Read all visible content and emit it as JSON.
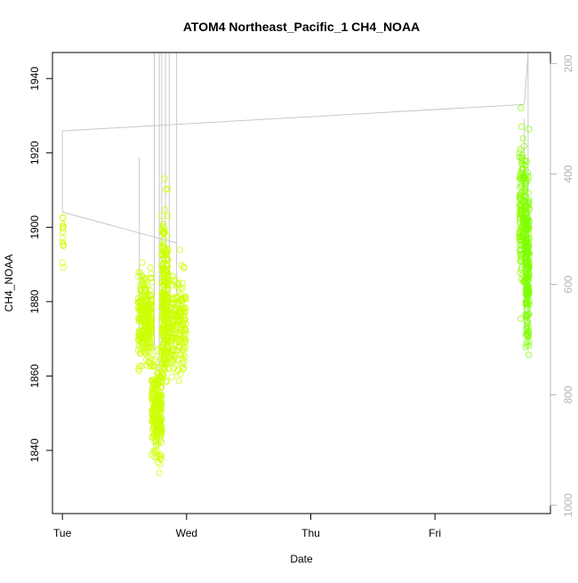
{
  "chart_data": {
    "type": "scatter",
    "title": "ATOM4 Northeast_Pacific_1 CH4_NOAA",
    "xlabel": "Date",
    "ylabel": "CH4_NOAA",
    "x_ticks": [
      "Tue",
      "Wed",
      "Thu",
      "Fri"
    ],
    "x_range_days": [
      -0.08,
      3.93
    ],
    "ylim": [
      1823,
      1947
    ],
    "y_ticks": [
      1840,
      1860,
      1880,
      1900,
      1920,
      1940
    ],
    "right_axis": {
      "reversed": true,
      "ylim": [
        1015,
        180
      ],
      "ticks": [
        200,
        400,
        600,
        800,
        1000
      ],
      "color": "#b4b4b4",
      "note": "secondary axis (pressure-like) drawn as grey flight-altitude trace"
    },
    "grid": false,
    "colors": {
      "early_points": "#ccff00",
      "late_points": "#7fff00",
      "trace": "#c8c8c8"
    },
    "series": [
      {
        "marker": "open-circle",
        "clusters": [
          {
            "day_start": 0.0,
            "day_end": 0.01,
            "y_min": 1878,
            "y_max": 1915,
            "count": 14,
            "color": "#ccff00"
          },
          {
            "day_start": 0.61,
            "day_end": 0.72,
            "y_min": 1851,
            "y_max": 1900,
            "count": 260,
            "color": "#ccff00"
          },
          {
            "day_start": 0.72,
            "day_end": 0.8,
            "y_min": 1826,
            "y_max": 1875,
            "count": 260,
            "color": "#ccff00"
          },
          {
            "day_start": 0.8,
            "day_end": 0.85,
            "y_min": 1838,
            "y_max": 1921,
            "count": 260,
            "color": "#ccff00"
          },
          {
            "day_start": 0.85,
            "day_end": 0.995,
            "y_min": 1848,
            "y_max": 1900,
            "count": 200,
            "color": "#ccff00"
          },
          {
            "day_start": 3.68,
            "day_end": 3.73,
            "y_min": 1866,
            "y_max": 1942,
            "count": 160,
            "color": "#8aff00"
          },
          {
            "day_start": 3.73,
            "day_end": 3.76,
            "y_min": 1847,
            "y_max": 1933,
            "count": 200,
            "color": "#7fff00"
          }
        ]
      }
    ],
    "trace": {
      "segments": [
        {
          "x": [
            0.0,
            0.0,
            0.0
          ],
          "y_right": [
            322,
            469,
            322
          ]
        },
        {
          "x": [
            0.0,
            0.92
          ],
          "y_right": [
            469,
            525
          ]
        },
        {
          "x": [
            0.0,
            3.72
          ],
          "y_right": [
            322,
            274
          ]
        },
        {
          "x": [
            3.72,
            3.75
          ],
          "y_right": [
            274,
            180
          ]
        }
      ],
      "verticals": [
        {
          "x": 0.62,
          "y_right": [
            370,
            700
          ]
        },
        {
          "x": 0.74,
          "y_right": [
            180,
            720
          ]
        },
        {
          "x": 0.78,
          "y_right": [
            180,
            760
          ]
        },
        {
          "x": 0.8,
          "y_right": [
            180,
            740
          ]
        },
        {
          "x": 0.83,
          "y_right": [
            180,
            720
          ]
        },
        {
          "x": 0.86,
          "y_right": [
            180,
            730
          ]
        },
        {
          "x": 0.92,
          "y_right": [
            180,
            620
          ]
        },
        {
          "x": 3.72,
          "y_right": [
            300,
            690
          ]
        },
        {
          "x": 3.75,
          "y_right": [
            180,
            690
          ]
        }
      ]
    }
  }
}
